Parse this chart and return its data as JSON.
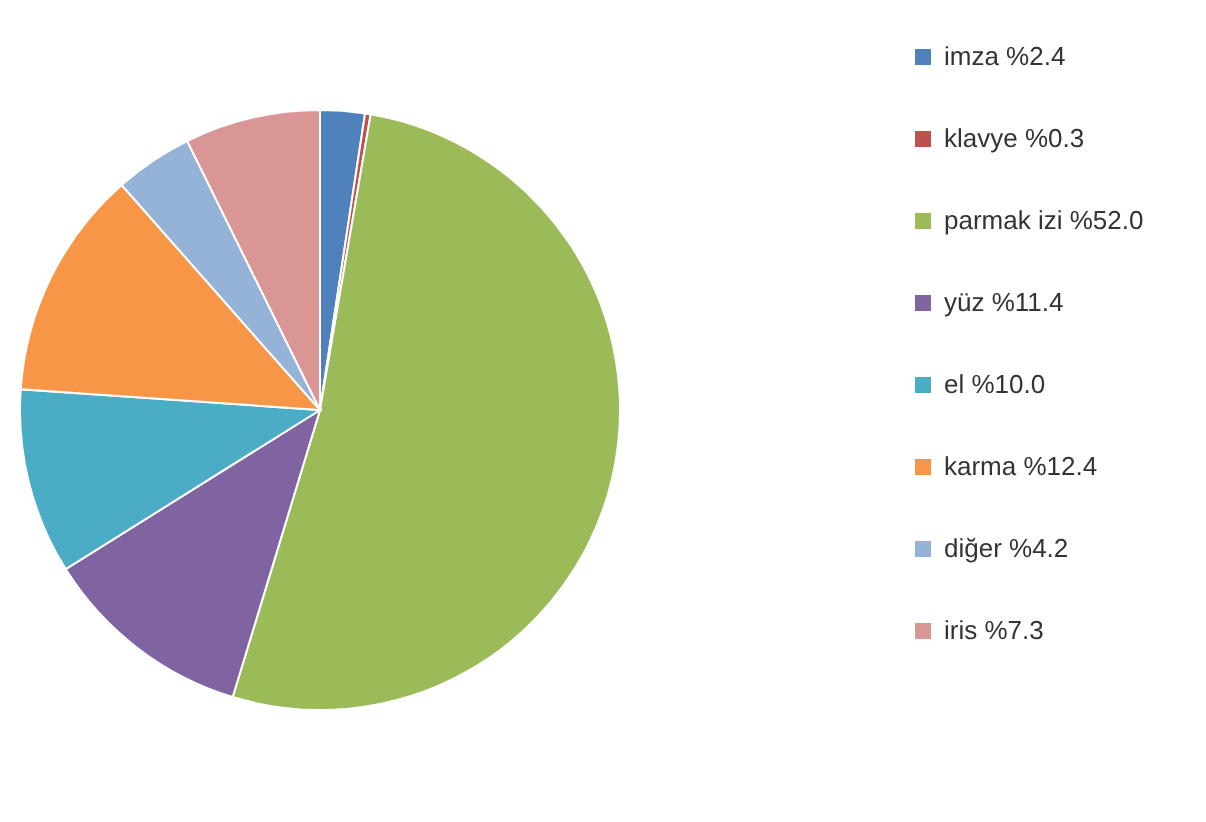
{
  "chart_data": {
    "type": "pie",
    "categories": [
      "imza %2.4",
      "klavye %0.3",
      "parmak izi %52.0",
      "yüz %11.4",
      "el %10.0",
      "karma %12.4",
      "diğer %4.2",
      "iris %7.3"
    ],
    "values": [
      2.4,
      0.3,
      52.0,
      11.4,
      10.0,
      12.4,
      4.2,
      7.3
    ],
    "colors": [
      "#4f81bd",
      "#c0504d",
      "#9bbb59",
      "#8064a2",
      "#4bacc6",
      "#f79646",
      "#95b3d7",
      "#da9694"
    ],
    "legend": "right"
  }
}
